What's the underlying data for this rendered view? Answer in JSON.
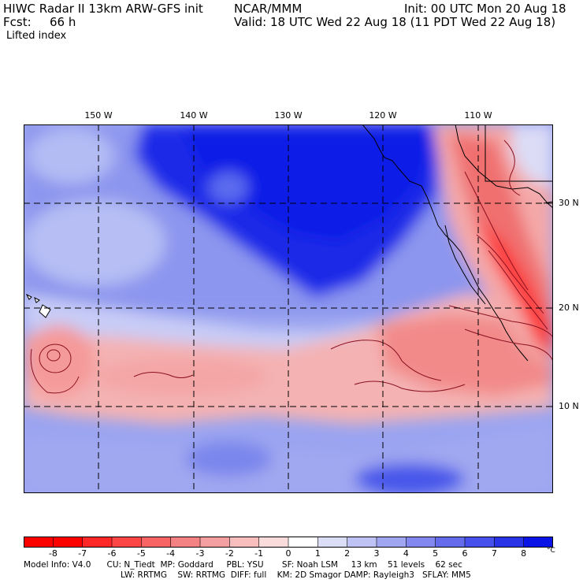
{
  "header": {
    "title": "HIWC Radar II 13km ARW-GFS init",
    "source": "NCAR/MMM",
    "init": "Init: 00 UTC Mon 20 Aug 18",
    "fcst_label": "Fcst:",
    "fcst_value": "66 h",
    "valid": "Valid: 18 UTC Wed 22 Aug 18 (11 PDT Wed 22 Aug 18)",
    "field": "Lifted index"
  },
  "map": {
    "longitude_labels": [
      "150 W",
      "140 W",
      "130 W",
      "120 W",
      "110 W"
    ],
    "latitude_labels": [
      "30 N",
      "20 N",
      "10 N"
    ],
    "colors": {
      "stable_deep": "#0a1ee6",
      "stable_mid": "#5a6cee",
      "stable_light": "#b8c0f4",
      "neutral": "#ffffff",
      "unstable_light": "#f8c8c8",
      "unstable_mid": "#f07878",
      "unstable_deep": "#ff2a2a",
      "contour": "#8a1020",
      "coast": "#000000"
    }
  },
  "colorbar": {
    "colors": [
      "#ff0000",
      "#ff2828",
      "#ff4646",
      "#f86464",
      "#f48282",
      "#f4a0a0",
      "#f8bebe",
      "#fadcdc",
      "#ffffff",
      "#dcdef8",
      "#bec2f4",
      "#a0a6f0",
      "#8288ee",
      "#646cec",
      "#4650ea",
      "#2834e6",
      "#0a14e6"
    ],
    "labels": [
      "-8",
      "-7",
      "-6",
      "-5",
      "-4",
      "-3",
      "-2",
      "-1",
      "0",
      "1",
      "2",
      "3",
      "4",
      "5",
      "6",
      "7",
      "8"
    ],
    "unit": "°C"
  },
  "model_info": {
    "line1": "Model Info: V4.0      CU: N_Tiedt  MP: Goddard     PBL: YSU       SF: Noah LSM     13 km    51 levels    62 sec",
    "line2": "LW: RRTMG    SW: RRTMG  DIFF: full    KM: 2D Smagor DAMP: Rayleigh3   SFLAY: MM5"
  }
}
